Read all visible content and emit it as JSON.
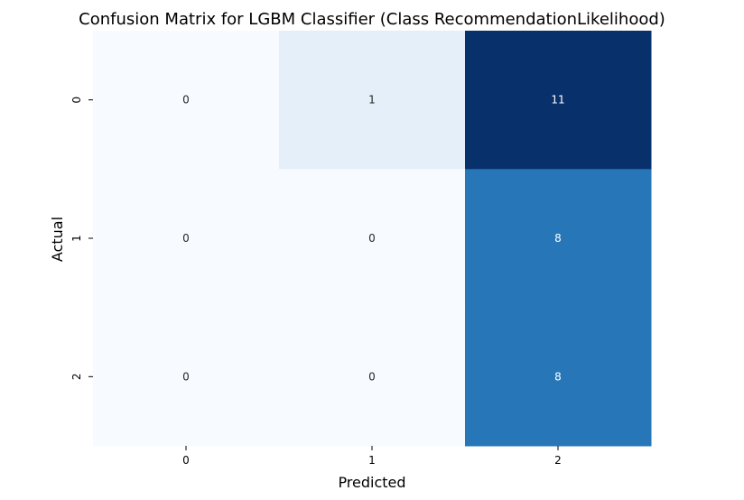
{
  "chart_data": {
    "type": "heatmap",
    "title": "Confusion Matrix for LGBM Classifier (Class RecommendationLikelihood)",
    "xlabel": "Predicted",
    "ylabel": "Actual",
    "x_categories": [
      "0",
      "1",
      "2"
    ],
    "y_categories": [
      "0",
      "1",
      "2"
    ],
    "values": [
      [
        0,
        1,
        11
      ],
      [
        0,
        0,
        8
      ],
      [
        0,
        0,
        8
      ]
    ],
    "colormap": "Blues",
    "vmin": 0,
    "vmax": 11,
    "colorbar": false
  }
}
